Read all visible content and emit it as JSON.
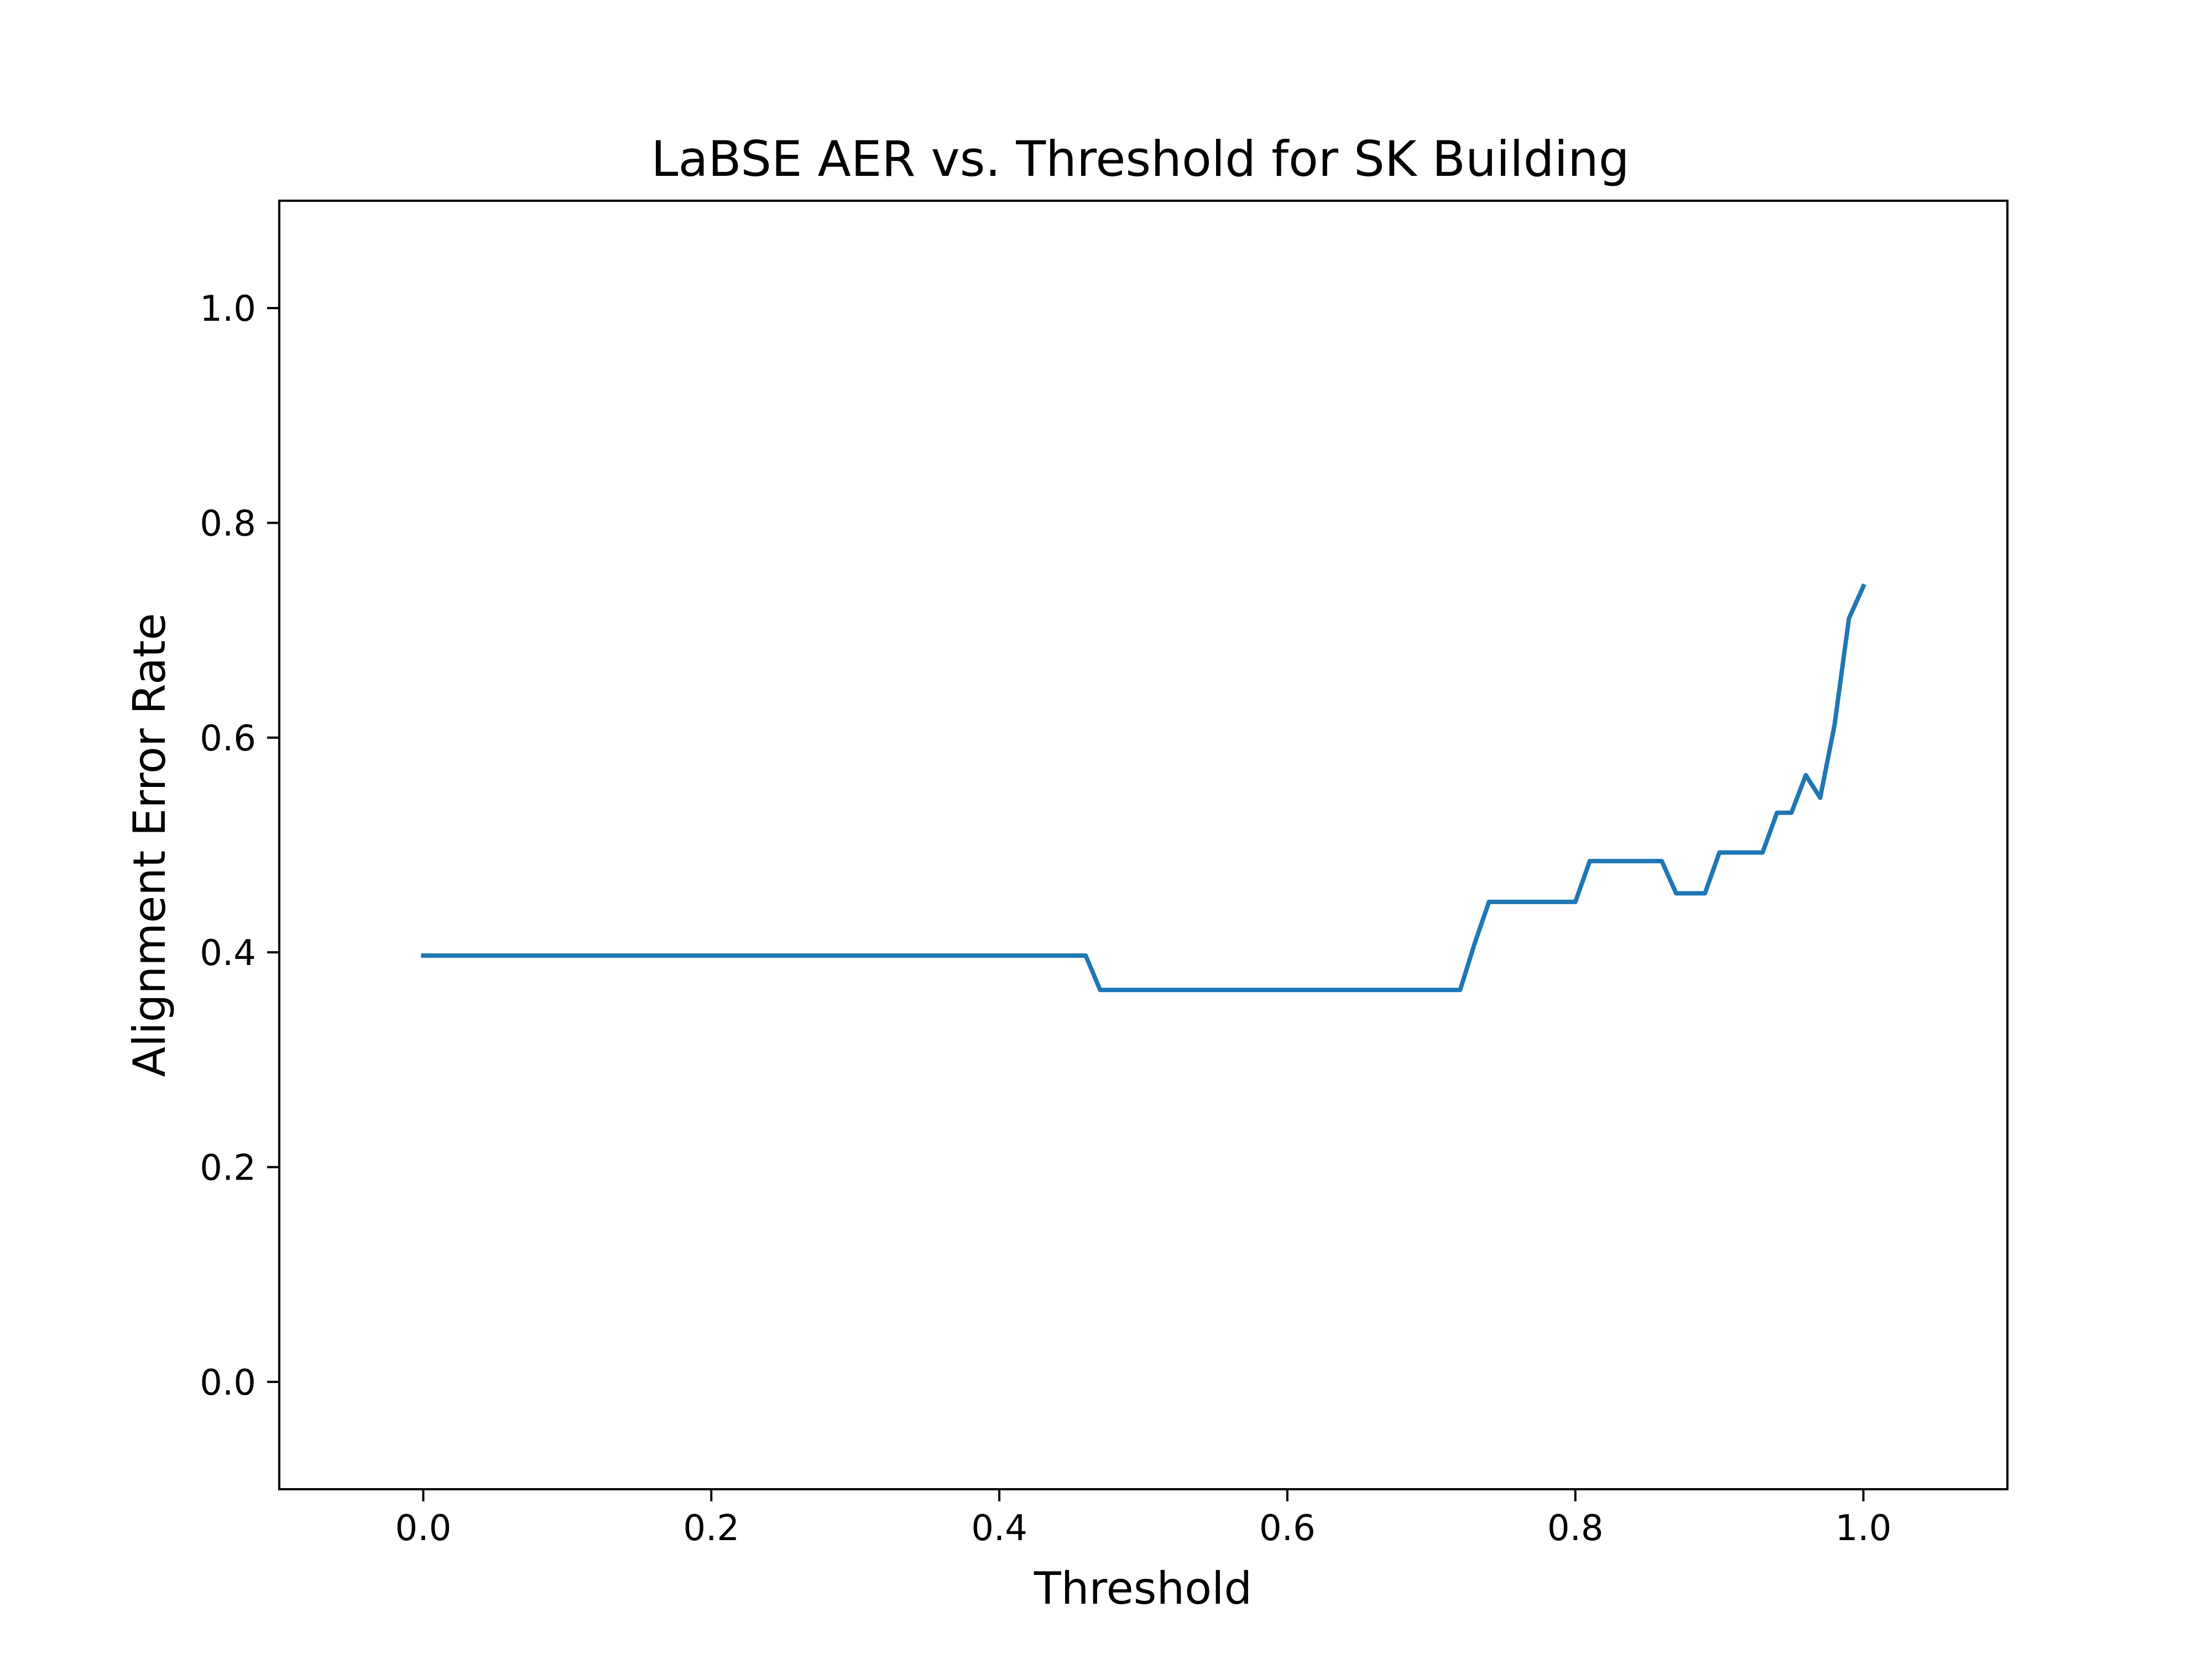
{
  "chart_data": {
    "type": "line",
    "title": "LaBSE AER vs. Threshold for SK Building",
    "xlabel": "Threshold",
    "ylabel": "Alignment Error Rate",
    "xlim": [
      -0.1,
      1.1
    ],
    "ylim": [
      -0.1,
      1.1
    ],
    "xticks": [
      "0.0",
      "0.2",
      "0.4",
      "0.6",
      "0.8",
      "1.0"
    ],
    "yticks": [
      "0.0",
      "0.2",
      "0.4",
      "0.6",
      "0.8",
      "1.0"
    ],
    "grid": false,
    "series": [
      {
        "color": "#1f77b4",
        "x": [
          0.0,
          0.46,
          0.47,
          0.72,
          0.73,
          0.74,
          0.8,
          0.81,
          0.86,
          0.87,
          0.89,
          0.9,
          0.93,
          0.94,
          0.95,
          0.96,
          0.97,
          0.98,
          0.99,
          1.0
        ],
        "y": [
          0.397,
          0.397,
          0.365,
          0.365,
          0.408,
          0.447,
          0.447,
          0.485,
          0.485,
          0.455,
          0.455,
          0.493,
          0.493,
          0.53,
          0.53,
          0.565,
          0.544,
          0.612,
          0.711,
          0.741
        ]
      }
    ]
  }
}
